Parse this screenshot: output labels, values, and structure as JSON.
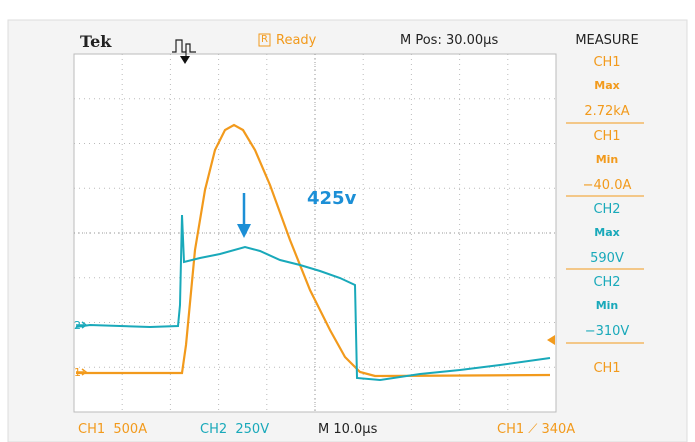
{
  "header": {
    "brand": "Tek",
    "status_icon": "R",
    "status": "Ready",
    "position": "M Pos: 30.00µs"
  },
  "measure": {
    "title": "MEASURE",
    "items": [
      {
        "channel": "CH1",
        "stat": "Max",
        "value": "2.72kA"
      },
      {
        "channel": "CH1",
        "stat": "Min",
        "value": "−40.0A"
      },
      {
        "channel": "CH2",
        "stat": "Max",
        "value": "590V"
      },
      {
        "channel": "CH2",
        "stat": "Min",
        "value": "−310V"
      }
    ],
    "last": "CH1"
  },
  "annotation": "425v",
  "markers": [
    "2",
    "1"
  ],
  "footer": {
    "ch1": "CH1  500A",
    "ch2": "CH2  250V",
    "time": "M 10.0µs",
    "trigger": "CH1 ⟋ 340A"
  }
}
